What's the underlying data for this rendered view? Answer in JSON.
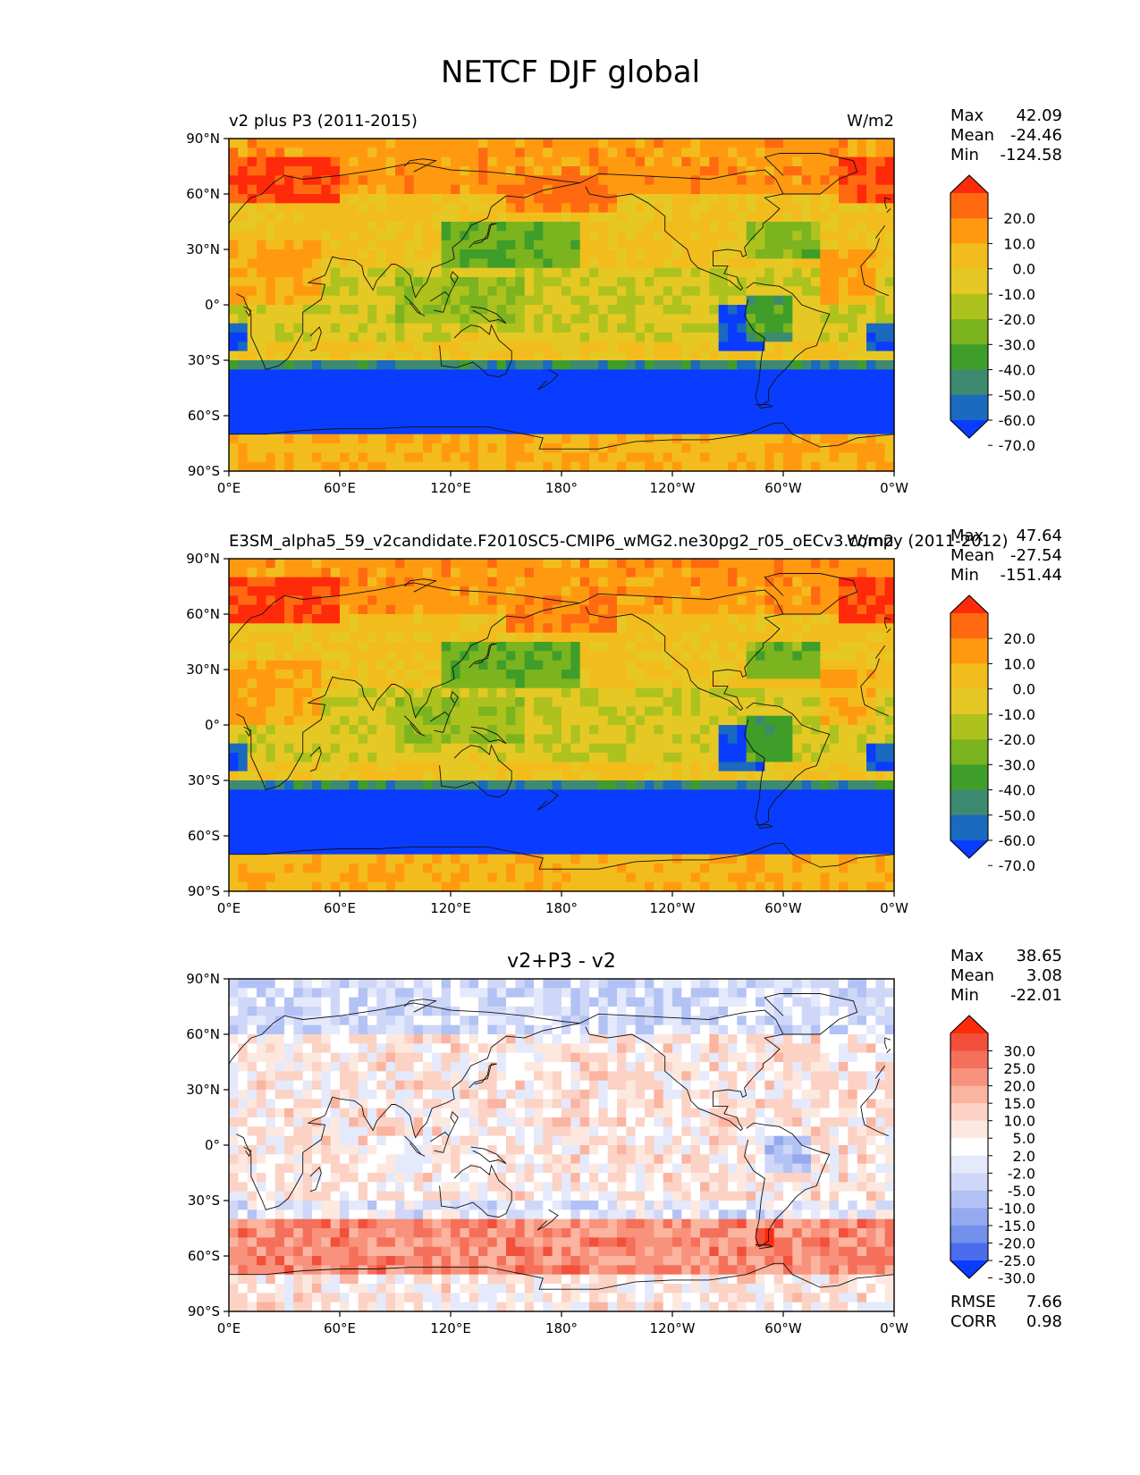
{
  "title": "NETCF DJF global",
  "units": "W/m2",
  "chart_data": [
    {
      "type": "heatmap",
      "title_left": "v2 plus P3 (2011-2015)",
      "title_right": "W/m2",
      "title_center": "",
      "stats": {
        "max_label": "Max",
        "max": "42.09",
        "mean_label": "Mean",
        "mean": "-24.46",
        "min_label": "Min",
        "min": "-124.58"
      },
      "colorbar_labels": [
        "20.0",
        "10.0",
        "0.0",
        "-10.0",
        "-20.0",
        "-30.0",
        "-40.0",
        "-50.0",
        "-60.0",
        "-70.0"
      ],
      "colorbar_colors": [
        "#ff2a0a",
        "#ff6a10",
        "#ff9a10",
        "#f2bd1c",
        "#e6c824",
        "#aec21e",
        "#7bb41e",
        "#3f9e2a",
        "#3d8a70",
        "#1a6abf",
        "#0a3cff"
      ],
      "xlabels": [
        "0°E",
        "60°E",
        "120°E",
        "180°",
        "120°W",
        "60°W",
        "0°W"
      ],
      "ylabels": [
        "90°N",
        "60°N",
        "30°N",
        "0°",
        "30°S",
        "60°S",
        "90°S"
      ],
      "field": "full"
    },
    {
      "type": "heatmap",
      "title_left": "E3SM_alpha5_59_v2candidate.F2010SC5-CMIP6_wMG2.ne30pg2_r05_oECv3.compy (2011-2012)",
      "title_right": "W/m2",
      "title_center": "",
      "stats": {
        "max_label": "Max",
        "max": "47.64",
        "mean_label": "Mean",
        "mean": "-27.54",
        "min_label": "Min",
        "min": "-151.44"
      },
      "colorbar_labels": [
        "20.0",
        "10.0",
        "0.0",
        "-10.0",
        "-20.0",
        "-30.0",
        "-40.0",
        "-50.0",
        "-60.0",
        "-70.0"
      ],
      "colorbar_colors": [
        "#ff2a0a",
        "#ff6a10",
        "#ff9a10",
        "#f2bd1c",
        "#e6c824",
        "#aec21e",
        "#7bb41e",
        "#3f9e2a",
        "#3d8a70",
        "#1a6abf",
        "#0a3cff"
      ],
      "xlabels": [
        "0°E",
        "60°E",
        "120°E",
        "180°",
        "120°W",
        "60°W",
        "0°W"
      ],
      "ylabels": [
        "90°N",
        "60°N",
        "30°N",
        "0°",
        "30°S",
        "60°S",
        "90°S"
      ],
      "field": "full"
    },
    {
      "type": "heatmap",
      "title_left": "",
      "title_right": "",
      "title_center": "v2+P3 - v2",
      "stats": {
        "max_label": "Max",
        "max": "38.65",
        "mean_label": "Mean",
        "mean": "3.08",
        "min_label": "Min",
        "min": "-22.01"
      },
      "colorbar_labels": [
        "30.0",
        "25.0",
        "20.0",
        "15.0",
        "10.0",
        "5.0",
        "2.0",
        "-2.0",
        "-5.0",
        "-10.0",
        "-15.0",
        "-20.0",
        "-25.0",
        "-30.0"
      ],
      "colorbar_colors": [
        "#ff2a0a",
        "#f2503a",
        "#f5705a",
        "#f8927c",
        "#fab4a0",
        "#fcd2c4",
        "#fde8e0",
        "#ffffff",
        "#e4e9fb",
        "#cfd7f8",
        "#b3c2f4",
        "#95a9f0",
        "#7390ec",
        "#4c6cee",
        "#0a3cff"
      ],
      "xlabels": [
        "0°E",
        "60°E",
        "120°E",
        "180°",
        "120°W",
        "60°W",
        "0°W"
      ],
      "ylabels": [
        "90°N",
        "60°N",
        "30°N",
        "0°",
        "30°S",
        "60°S",
        "90°S"
      ],
      "field": "diff",
      "rmse_label": "RMSE",
      "rmse": "7.66",
      "corr_label": "CORR",
      "corr": "0.98"
    }
  ]
}
